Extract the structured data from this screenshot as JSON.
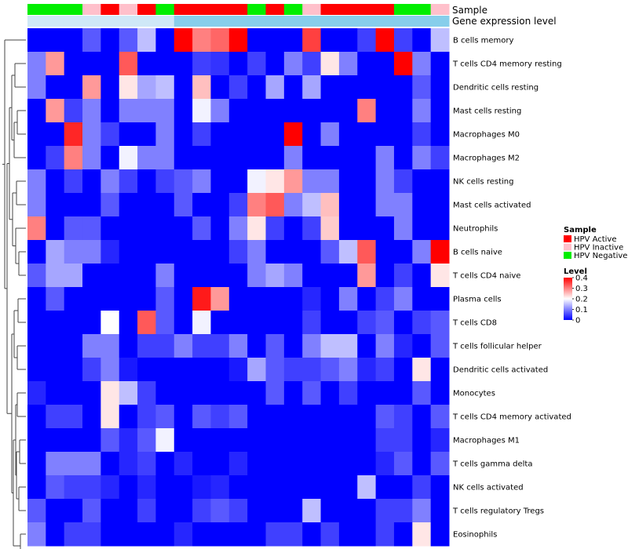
{
  "chart_data": {
    "type": "heatmap",
    "annotation_labels": {
      "sample": "Sample",
      "level": "Gene expression level"
    },
    "rows": [
      "B cells memory",
      "T cells CD4 memory resting",
      "Dendritic cells resting",
      "Mast cells resting",
      "Macrophages M0",
      "Macrophages M2",
      "NK cells resting",
      "Mast cells activated",
      "Neutrophils",
      "B cells naive",
      "T cells CD4 naive",
      "Plasma cells",
      "T cells CD8",
      "T cells follicular helper",
      "Dendritic cells activated",
      "Monocytes",
      "T cells CD4 memory activated",
      "Macrophages M1",
      "T cells gamma delta",
      "NK cells activated",
      "T cells regulatory  Tregs",
      "Eosinophils"
    ],
    "sample_groups": [
      "HPV Negative",
      "HPV Negative",
      "HPV Negative",
      "HPV Inactive",
      "HPV Active",
      "HPV Inactive",
      "HPV Active",
      "HPV Negative",
      "HPV Active",
      "HPV Active",
      "HPV Active",
      "HPV Active",
      "HPV Negative",
      "HPV Active",
      "HPV Negative",
      "HPV Inactive",
      "HPV Active",
      "HPV Active",
      "HPV Active",
      "HPV Active",
      "HPV Negative",
      "HPV Negative",
      "HPV Inactive"
    ],
    "values": [
      [
        0.0,
        0.0,
        0.0,
        0.07,
        0.0,
        0.07,
        0.15,
        0.0,
        0.4,
        0.3,
        0.32,
        0.4,
        0.0,
        0.0,
        0.0,
        0.35,
        0.0,
        0.0,
        0.05,
        0.4,
        0.05,
        0.0,
        0.15
      ],
      [
        0.1,
        0.28,
        0.0,
        0.0,
        0.0,
        0.33,
        0.0,
        0.0,
        0.0,
        0.05,
        0.04,
        0.0,
        0.05,
        0.0,
        0.1,
        0.05,
        0.22,
        0.1,
        0.0,
        0.0,
        0.4,
        0.1,
        0.0
      ],
      [
        0.1,
        0.0,
        0.0,
        0.28,
        0.0,
        0.22,
        0.13,
        0.15,
        0.0,
        0.25,
        0.0,
        0.05,
        0.0,
        0.13,
        0.0,
        0.13,
        0.0,
        0.0,
        0.0,
        0.0,
        0.0,
        0.07,
        0.0
      ],
      [
        0.0,
        0.28,
        0.05,
        0.1,
        0.0,
        0.1,
        0.1,
        0.1,
        0.0,
        0.19,
        0.1,
        0.0,
        0.0,
        0.0,
        0.0,
        0.0,
        0.0,
        0.0,
        0.3,
        0.0,
        0.0,
        0.1,
        0.0
      ],
      [
        0.0,
        0.0,
        0.37,
        0.1,
        0.05,
        0.0,
        0.0,
        0.1,
        0.0,
        0.05,
        0.0,
        0.0,
        0.0,
        0.0,
        0.4,
        0.0,
        0.1,
        0.0,
        0.0,
        0.0,
        0.0,
        0.05,
        0.0
      ],
      [
        0.0,
        0.05,
        0.3,
        0.1,
        0.0,
        0.19,
        0.1,
        0.1,
        0.0,
        0.0,
        0.0,
        0.0,
        0.0,
        0.0,
        0.1,
        0.0,
        0.0,
        0.0,
        0.0,
        0.1,
        0.0,
        0.1,
        0.05
      ],
      [
        0.1,
        0.0,
        0.05,
        0.0,
        0.1,
        0.05,
        0.0,
        0.05,
        0.07,
        0.1,
        0.0,
        0.0,
        0.19,
        0.22,
        0.28,
        0.1,
        0.1,
        0.0,
        0.0,
        0.1,
        0.05,
        0.0,
        0.0
      ],
      [
        0.1,
        0.0,
        0.0,
        0.0,
        0.07,
        0.0,
        0.0,
        0.0,
        0.07,
        0.0,
        0.0,
        0.05,
        0.3,
        0.33,
        0.1,
        0.15,
        0.25,
        0.0,
        0.0,
        0.1,
        0.1,
        0.0,
        0.0
      ],
      [
        0.3,
        0.0,
        0.07,
        0.07,
        0.0,
        0.0,
        0.0,
        0.0,
        0.0,
        0.07,
        0.0,
        0.1,
        0.22,
        0.05,
        0.0,
        0.05,
        0.24,
        0.0,
        0.0,
        0.0,
        0.1,
        0.0,
        0.0
      ],
      [
        0.0,
        0.13,
        0.1,
        0.1,
        0.03,
        0.0,
        0.0,
        0.0,
        0.0,
        0.0,
        0.0,
        0.05,
        0.1,
        0.0,
        0.0,
        0.0,
        0.07,
        0.15,
        0.33,
        0.0,
        0.0,
        0.1,
        0.4
      ],
      [
        0.07,
        0.13,
        0.13,
        0.0,
        0.0,
        0.0,
        0.0,
        0.1,
        0.0,
        0.0,
        0.0,
        0.0,
        0.1,
        0.13,
        0.1,
        0.0,
        0.0,
        0.0,
        0.28,
        0.0,
        0.05,
        0.0,
        0.22
      ],
      [
        0.0,
        0.07,
        0.0,
        0.0,
        0.0,
        0.0,
        0.0,
        0.07,
        0.0,
        0.38,
        0.28,
        0.0,
        0.0,
        0.0,
        0.0,
        0.03,
        0.0,
        0.1,
        0.0,
        0.05,
        0.1,
        0.0,
        0.0
      ],
      [
        0.0,
        0.0,
        0.0,
        0.0,
        0.2,
        0.0,
        0.33,
        0.07,
        0.0,
        0.19,
        0.0,
        0.0,
        0.0,
        0.0,
        0.0,
        0.05,
        0.0,
        0.0,
        0.05,
        0.07,
        0.0,
        0.05,
        0.07
      ],
      [
        0.0,
        0.0,
        0.0,
        0.1,
        0.1,
        0.0,
        0.05,
        0.05,
        0.1,
        0.05,
        0.05,
        0.1,
        0.0,
        0.07,
        0.0,
        0.1,
        0.15,
        0.15,
        0.0,
        0.1,
        0.03,
        0.0,
        0.07
      ],
      [
        0.0,
        0.0,
        0.0,
        0.05,
        0.1,
        0.02,
        0.0,
        0.0,
        0.0,
        0.0,
        0.0,
        0.02,
        0.13,
        0.07,
        0.05,
        0.05,
        0.07,
        0.1,
        0.03,
        0.05,
        0.0,
        0.22,
        0.0
      ],
      [
        0.03,
        0.0,
        0.0,
        0.0,
        0.22,
        0.15,
        0.05,
        0.0,
        0.0,
        0.0,
        0.0,
        0.0,
        0.0,
        0.07,
        0.0,
        0.07,
        0.0,
        0.05,
        0.0,
        0.0,
        0.0,
        0.07,
        0.0
      ],
      [
        0.0,
        0.05,
        0.05,
        0.0,
        0.22,
        0.0,
        0.05,
        0.07,
        0.0,
        0.07,
        0.05,
        0.07,
        0.0,
        0.0,
        0.0,
        0.0,
        0.0,
        0.0,
        0.0,
        0.07,
        0.05,
        0.0,
        0.07
      ],
      [
        0.0,
        0.0,
        0.0,
        0.0,
        0.07,
        0.03,
        0.07,
        0.19,
        0.0,
        0.0,
        0.0,
        0.0,
        0.0,
        0.0,
        0.0,
        0.0,
        0.0,
        0.0,
        0.0,
        0.05,
        0.05,
        0.0,
        0.03
      ],
      [
        0.0,
        0.1,
        0.1,
        0.1,
        0.0,
        0.03,
        0.05,
        0.0,
        0.03,
        0.0,
        0.0,
        0.03,
        0.0,
        0.0,
        0.0,
        0.0,
        0.0,
        0.0,
        0.0,
        0.03,
        0.07,
        0.0,
        0.07
      ],
      [
        0.0,
        0.07,
        0.05,
        0.05,
        0.03,
        0.0,
        0.03,
        0.0,
        0.0,
        0.02,
        0.03,
        0.0,
        0.0,
        0.0,
        0.0,
        0.0,
        0.0,
        0.0,
        0.15,
        0.0,
        0.0,
        0.05,
        0.0
      ],
      [
        0.07,
        0.0,
        0.0,
        0.07,
        0.0,
        0.0,
        0.05,
        0.0,
        0.0,
        0.05,
        0.07,
        0.05,
        0.0,
        0.0,
        0.0,
        0.15,
        0.0,
        0.0,
        0.0,
        0.05,
        0.05,
        0.1,
        0.0
      ],
      [
        0.1,
        0.0,
        0.05,
        0.05,
        0.0,
        0.0,
        0.0,
        0.0,
        0.03,
        0.0,
        0.0,
        0.0,
        0.0,
        0.05,
        0.05,
        0.0,
        0.05,
        0.0,
        0.0,
        0.05,
        0.0,
        0.22,
        0.0
      ]
    ]
  },
  "legend": {
    "sample_title": "Sample",
    "sample_items": [
      {
        "label": "HPV Active",
        "color": "#ff0000"
      },
      {
        "label": "HPV Inactive",
        "color": "#ffc0cb"
      },
      {
        "label": "HPV Negative",
        "color": "#00ee00"
      }
    ],
    "level_title": "Level",
    "level_ticks": [
      "0.4",
      "0.3",
      "0.2",
      "0.1",
      "0"
    ]
  },
  "colors": {
    "low": "#0000ff",
    "mid": "#ffffff",
    "high": "#ff0000",
    "level_annotation": "#87ceeb",
    "level_annotation_light": "#cfe8f7"
  }
}
